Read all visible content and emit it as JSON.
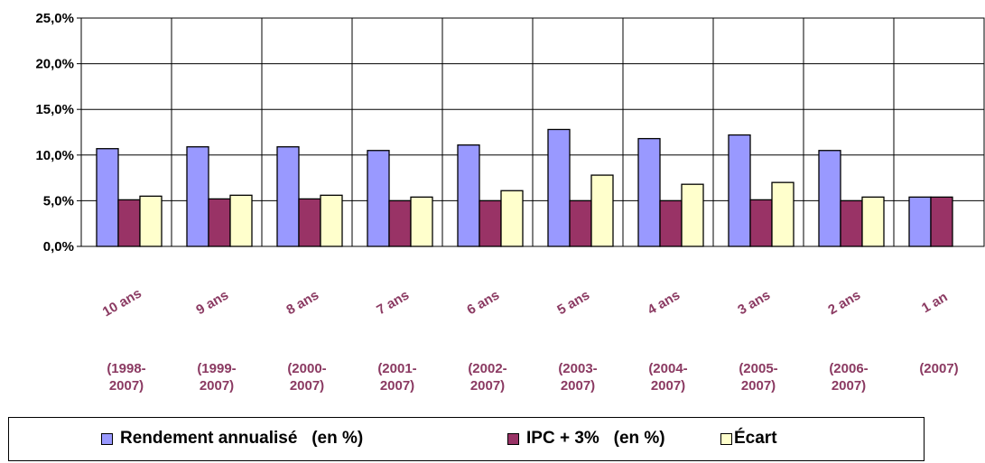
{
  "chart_data": {
    "type": "bar",
    "categories": [
      {
        "label": "10 ans",
        "period": "(1998-\n2007)"
      },
      {
        "label": "9 ans",
        "period": "(1999-\n2007)"
      },
      {
        "label": "8 ans",
        "period": "(2000-\n2007)"
      },
      {
        "label": "7 ans",
        "period": "(2001-\n2007)"
      },
      {
        "label": "6 ans",
        "period": "(2002-\n2007)"
      },
      {
        "label": "5 ans",
        "period": "(2003-\n2007)"
      },
      {
        "label": "4 ans",
        "period": "(2004-\n2007)"
      },
      {
        "label": "3 ans",
        "period": "(2005-\n2007)"
      },
      {
        "label": "2 ans",
        "period": "(2006-\n2007)"
      },
      {
        "label": "1 an",
        "period": "(2007)"
      }
    ],
    "series": [
      {
        "name": "Rendement annualisé   (en %)",
        "color": "#9999FF",
        "values": [
          10.7,
          10.9,
          10.9,
          10.5,
          11.1,
          12.8,
          11.8,
          12.2,
          10.5,
          5.4
        ]
      },
      {
        "name": "IPC + 3%   (en %)",
        "color": "#993366",
        "values": [
          5.1,
          5.2,
          5.2,
          5.0,
          5.0,
          5.0,
          5.0,
          5.1,
          5.0,
          5.4
        ]
      },
      {
        "name": "Écart",
        "color": "#FFFFCC",
        "values": [
          5.5,
          5.6,
          5.6,
          5.4,
          6.1,
          7.8,
          6.8,
          7.0,
          5.4,
          null
        ]
      }
    ],
    "yticks": [
      "0,0%",
      "5,0%",
      "10,0%",
      "15,0%",
      "20,0%",
      "25,0%"
    ],
    "ylim": [
      0,
      25
    ],
    "grid": true,
    "legend": "bottom"
  }
}
